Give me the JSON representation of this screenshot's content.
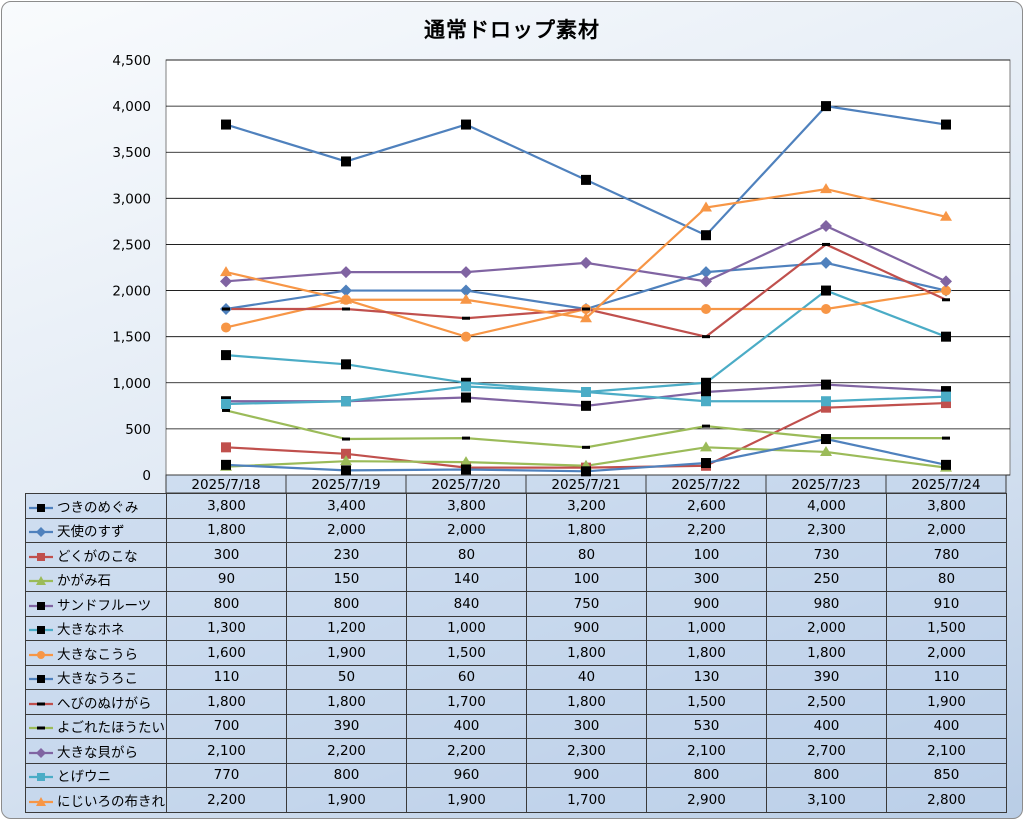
{
  "chart_data": {
    "type": "line",
    "title": "通常ドロップ素材",
    "ylim": [
      0,
      4500
    ],
    "y_ticks": [
      "0",
      "500",
      "1,000",
      "1,500",
      "2,000",
      "2,500",
      "3,000",
      "3,500",
      "4,000",
      "4,500"
    ],
    "categories": [
      "2025/7/18",
      "2025/7/19",
      "2025/7/20",
      "2025/7/21",
      "2025/7/22",
      "2025/7/23",
      "2025/7/24"
    ],
    "grid": true,
    "legend": "data-table",
    "series": [
      {
        "name": "つきのめぐみ",
        "color": "#4f81bd",
        "marker": "square-black",
        "values": [
          3800,
          3400,
          3800,
          3200,
          2600,
          4000,
          3800
        ],
        "labels": [
          "3,800",
          "3,400",
          "3,800",
          "3,200",
          "2,600",
          "4,000",
          "3,800"
        ]
      },
      {
        "name": "天使のすず",
        "color": "#4f81bd",
        "marker": "diamond",
        "values": [
          1800,
          2000,
          2000,
          1800,
          2200,
          2300,
          2000
        ],
        "labels": [
          "1,800",
          "2,000",
          "2,000",
          "1,800",
          "2,200",
          "2,300",
          "2,000"
        ]
      },
      {
        "name": "どくがのこな",
        "color": "#c0504d",
        "marker": "square",
        "values": [
          300,
          230,
          80,
          80,
          100,
          730,
          780
        ],
        "labels": [
          "300",
          "230",
          "80",
          "80",
          "100",
          "730",
          "780"
        ]
      },
      {
        "name": "かがみ石",
        "color": "#9bbb59",
        "marker": "triangle",
        "values": [
          90,
          150,
          140,
          100,
          300,
          250,
          80
        ],
        "labels": [
          "90",
          "150",
          "140",
          "100",
          "300",
          "250",
          "80"
        ]
      },
      {
        "name": "サンドフルーツ",
        "color": "#8064a2",
        "marker": "square-black",
        "values": [
          800,
          800,
          840,
          750,
          900,
          980,
          910
        ],
        "labels": [
          "800",
          "800",
          "840",
          "750",
          "900",
          "980",
          "910"
        ]
      },
      {
        "name": "大きなホネ",
        "color": "#4bacc6",
        "marker": "square-black",
        "values": [
          1300,
          1200,
          1000,
          900,
          1000,
          2000,
          1500
        ],
        "labels": [
          "1,300",
          "1,200",
          "1,000",
          "900",
          "1,000",
          "2,000",
          "1,500"
        ]
      },
      {
        "name": "大きなこうら",
        "color": "#f79646",
        "marker": "circle",
        "values": [
          1600,
          1900,
          1500,
          1800,
          1800,
          1800,
          2000
        ],
        "labels": [
          "1,600",
          "1,900",
          "1,500",
          "1,800",
          "1,800",
          "1,800",
          "2,000"
        ]
      },
      {
        "name": "大きなうろこ",
        "color": "#4f81bd",
        "marker": "square-black",
        "values": [
          110,
          50,
          60,
          40,
          130,
          390,
          110
        ],
        "labels": [
          "110",
          "50",
          "60",
          "40",
          "130",
          "390",
          "110"
        ]
      },
      {
        "name": "へびのぬけがら",
        "color": "#c0504d",
        "marker": "dash-black",
        "values": [
          1800,
          1800,
          1700,
          1800,
          1500,
          2500,
          1900
        ],
        "labels": [
          "1,800",
          "1,800",
          "1,700",
          "1,800",
          "1,500",
          "2,500",
          "1,900"
        ]
      },
      {
        "name": "よごれたほうたい",
        "color": "#9bbb59",
        "marker": "dash-black",
        "values": [
          700,
          390,
          400,
          300,
          530,
          400,
          400
        ],
        "labels": [
          "700",
          "390",
          "400",
          "300",
          "530",
          "400",
          "400"
        ]
      },
      {
        "name": "大きな貝がら",
        "color": "#8064a2",
        "marker": "diamond",
        "values": [
          2100,
          2200,
          2200,
          2300,
          2100,
          2700,
          2100
        ],
        "labels": [
          "2,100",
          "2,200",
          "2,200",
          "2,300",
          "2,100",
          "2,700",
          "2,100"
        ]
      },
      {
        "name": "とげウニ",
        "color": "#4bacc6",
        "marker": "square",
        "values": [
          770,
          800,
          960,
          900,
          800,
          800,
          850
        ],
        "labels": [
          "770",
          "800",
          "960",
          "900",
          "800",
          "800",
          "850"
        ]
      },
      {
        "name": "にじいろの布きれ",
        "color": "#f79646",
        "marker": "triangle",
        "values": [
          2200,
          1900,
          1900,
          1700,
          2900,
          3100,
          2800
        ],
        "labels": [
          "2,200",
          "1,900",
          "1,900",
          "1,700",
          "2,900",
          "3,100",
          "2,800"
        ]
      }
    ]
  }
}
